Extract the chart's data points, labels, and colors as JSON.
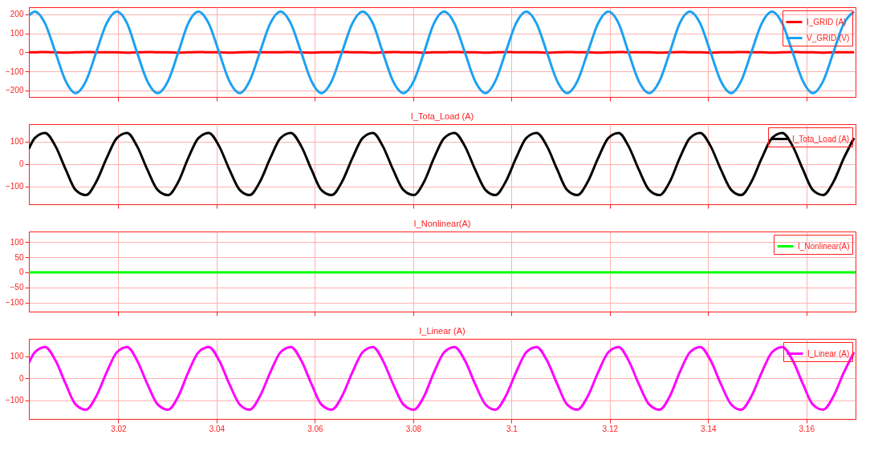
{
  "chart_data": [
    {
      "type": "line",
      "x": [
        3.0018,
        3.003,
        3.0051,
        3.0072,
        3.0093,
        3.0113,
        3.0134,
        3.0155,
        3.0176,
        3.0197,
        3.0218,
        3.0238,
        3.0259,
        3.028,
        3.0301,
        3.0322,
        3.0342,
        3.0363,
        3.0384,
        3.0405,
        3.0426,
        3.0447,
        3.0467,
        3.0488,
        3.0509,
        3.053,
        3.0551,
        3.0572,
        3.0593,
        3.0613,
        3.0634,
        3.0655,
        3.0676,
        3.0697,
        3.0718,
        3.0738,
        3.0759,
        3.078,
        3.0801,
        3.0822,
        3.0842,
        3.0863,
        3.0884,
        3.0905,
        3.0926,
        3.0947,
        3.0967,
        3.0988,
        3.1009,
        3.103,
        3.1051,
        3.1072,
        3.1093,
        3.1113,
        3.1134,
        3.1155,
        3.1176,
        3.1197,
        3.1218,
        3.1238,
        3.1259,
        3.128,
        3.1301,
        3.1322,
        3.1342,
        3.1363,
        3.1384,
        3.1405,
        3.1426,
        3.1447,
        3.1467,
        3.1488,
        3.1509,
        3.153,
        3.1551,
        3.1572,
        3.1593,
        3.1613,
        3.1634,
        3.1655,
        3.1676,
        3.1697
      ],
      "series": [
        {
          "name": "I_GRID (A)",
          "color": "#ff0000",
          "values": [
            0,
            0,
            2,
            0,
            -2,
            0,
            2,
            0,
            0,
            0,
            -2,
            0,
            2,
            0,
            0,
            -2,
            0,
            2,
            0,
            0,
            -2,
            0,
            2,
            0,
            0,
            0,
            2,
            0,
            -2,
            0,
            0,
            2,
            0,
            0,
            -2,
            0,
            2,
            0,
            0,
            -2,
            0,
            0,
            2,
            0,
            0,
            -2,
            0,
            2,
            0,
            0,
            0,
            -2,
            0,
            2,
            0,
            0,
            -2,
            0,
            2,
            0,
            0,
            0,
            -2,
            0,
            2,
            0,
            0,
            -2,
            0,
            0,
            2,
            0,
            0,
            -2,
            0,
            2,
            0,
            0,
            -2,
            0,
            0,
            0
          ]
        },
        {
          "name": "V_GRID (V)",
          "color": "#1ba1f2",
          "values": [
            193,
            215,
            152,
            0,
            -152,
            -215,
            -152,
            0,
            152,
            215,
            152,
            0,
            -152,
            -215,
            -152,
            0,
            152,
            215,
            152,
            0,
            -152,
            -215,
            -152,
            0,
            152,
            215,
            152,
            0,
            -152,
            -215,
            -152,
            0,
            152,
            215,
            152,
            0,
            -152,
            -215,
            -152,
            0,
            152,
            215,
            152,
            0,
            -152,
            -215,
            -152,
            0,
            152,
            215,
            152,
            0,
            -152,
            -215,
            -152,
            0,
            152,
            215,
            152,
            0,
            -152,
            -215,
            -152,
            0,
            152,
            215,
            152,
            0,
            -152,
            -215,
            -152,
            0,
            152,
            215,
            152,
            0,
            -152,
            -215,
            -152,
            0,
            152,
            215
          ]
        }
      ],
      "xlim": [
        3.0018,
        3.17
      ],
      "xticks": [
        3.02,
        3.04,
        3.06,
        3.08,
        3.1,
        3.12,
        3.14,
        3.16
      ],
      "ylim": [
        -235,
        238
      ],
      "yticks": [
        -200,
        -100,
        0,
        100,
        200
      ],
      "grid": true,
      "legend": "top right",
      "tick_labels": "y"
    },
    {
      "type": "line",
      "title": "I_Tota_Load (A)",
      "x": [
        3.0018,
        3.003,
        3.0051,
        3.0072,
        3.0093,
        3.0113,
        3.0134,
        3.0155,
        3.0176,
        3.0197,
        3.0218,
        3.0238,
        3.0259,
        3.028,
        3.0301,
        3.0322,
        3.0342,
        3.0363,
        3.0384,
        3.0405,
        3.0426,
        3.0447,
        3.0467,
        3.0488,
        3.0509,
        3.053,
        3.0551,
        3.0572,
        3.0593,
        3.0613,
        3.0634,
        3.0655,
        3.0676,
        3.0697,
        3.0718,
        3.0738,
        3.0759,
        3.078,
        3.0801,
        3.0822,
        3.0842,
        3.0863,
        3.0884,
        3.0905,
        3.0926,
        3.0947,
        3.0967,
        3.0988,
        3.1009,
        3.103,
        3.1051,
        3.1072,
        3.1093,
        3.1113,
        3.1134,
        3.1155,
        3.1176,
        3.1197,
        3.1218,
        3.1238,
        3.1259,
        3.128,
        3.1301,
        3.1322,
        3.1342,
        3.1363,
        3.1384,
        3.1405,
        3.1426,
        3.1447,
        3.1467,
        3.1488,
        3.1509,
        3.153,
        3.1551,
        3.1572,
        3.1593,
        3.1613,
        3.1634,
        3.1655,
        3.1676,
        3.1697
      ],
      "series": [
        {
          "name": "I_Tota_Load (A)",
          "color": "#000000",
          "values": [
            68,
            116,
            139,
            80,
            -25,
            -116,
            -139,
            -80,
            25,
            116,
            139,
            80,
            -25,
            -116,
            -139,
            -80,
            25,
            116,
            139,
            80,
            -25,
            -116,
            -139,
            -80,
            25,
            116,
            139,
            80,
            -25,
            -116,
            -139,
            -80,
            25,
            116,
            139,
            80,
            -25,
            -116,
            -139,
            -80,
            25,
            116,
            139,
            80,
            -25,
            -116,
            -139,
            -80,
            25,
            116,
            139,
            80,
            -25,
            -116,
            -139,
            -80,
            25,
            116,
            139,
            80,
            -25,
            -116,
            -139,
            -80,
            25,
            116,
            139,
            80,
            -25,
            -116,
            -139,
            -80,
            25,
            116,
            139,
            80,
            -25,
            -116,
            -139,
            -80,
            25,
            116
          ]
        }
      ],
      "xlim": [
        3.0018,
        3.17
      ],
      "xticks": [
        3.02,
        3.04,
        3.06,
        3.08,
        3.1,
        3.12,
        3.14,
        3.16
      ],
      "ylim": [
        -180,
        178
      ],
      "yticks": [
        -100,
        0,
        100
      ],
      "grid": true,
      "legend": "top right",
      "tick_labels": "y"
    },
    {
      "type": "line",
      "title": "I_Nonlinear(A)",
      "x": [
        3.0018,
        3.17
      ],
      "series": [
        {
          "name": "I_Nonlinear(A)",
          "color": "#00ff00",
          "values": [
            0,
            0
          ]
        }
      ],
      "xlim": [
        3.0018,
        3.17
      ],
      "xticks": [
        3.02,
        3.04,
        3.06,
        3.08,
        3.1,
        3.12,
        3.14,
        3.16
      ],
      "ylim": [
        -130,
        135
      ],
      "yticks": [
        -100,
        -50,
        0,
        50,
        100
      ],
      "grid": true,
      "legend": "top right",
      "tick_labels": "y"
    },
    {
      "type": "line",
      "title": "I_Linear (A)",
      "x": [
        3.0018,
        3.003,
        3.0051,
        3.0072,
        3.0093,
        3.0113,
        3.0134,
        3.0155,
        3.0176,
        3.0197,
        3.0218,
        3.0238,
        3.0259,
        3.028,
        3.0301,
        3.0322,
        3.0342,
        3.0363,
        3.0384,
        3.0405,
        3.0426,
        3.0447,
        3.0467,
        3.0488,
        3.0509,
        3.053,
        3.0551,
        3.0572,
        3.0593,
        3.0613,
        3.0634,
        3.0655,
        3.0676,
        3.0697,
        3.0718,
        3.0738,
        3.0759,
        3.078,
        3.0801,
        3.0822,
        3.0842,
        3.0863,
        3.0884,
        3.0905,
        3.0926,
        3.0947,
        3.0967,
        3.0988,
        3.1009,
        3.103,
        3.1051,
        3.1072,
        3.1093,
        3.1113,
        3.1134,
        3.1155,
        3.1176,
        3.1197,
        3.1218,
        3.1238,
        3.1259,
        3.128,
        3.1301,
        3.1322,
        3.1342,
        3.1363,
        3.1384,
        3.1405,
        3.1426,
        3.1447,
        3.1467,
        3.1488,
        3.1509,
        3.153,
        3.1551,
        3.1572,
        3.1593,
        3.1613,
        3.1634,
        3.1655,
        3.1676,
        3.1697
      ],
      "series": [
        {
          "name": "I_Linear (A)",
          "color": "#ff00ff",
          "values": [
            70,
            119,
            143,
            82,
            -26,
            -119,
            -143,
            -82,
            26,
            119,
            143,
            82,
            -26,
            -119,
            -143,
            -82,
            26,
            119,
            143,
            82,
            -26,
            -119,
            -143,
            -82,
            26,
            119,
            143,
            82,
            -26,
            -119,
            -143,
            -82,
            26,
            119,
            143,
            82,
            -26,
            -119,
            -143,
            -82,
            26,
            119,
            143,
            82,
            -26,
            -119,
            -143,
            -82,
            26,
            119,
            143,
            82,
            -26,
            -119,
            -143,
            -82,
            26,
            119,
            143,
            82,
            -26,
            -119,
            -143,
            -82,
            26,
            119,
            143,
            82,
            -26,
            -119,
            -143,
            -82,
            26,
            119,
            143,
            82,
            -26,
            -119,
            -143,
            -82,
            26,
            119
          ]
        }
      ],
      "xlim": [
        3.0018,
        3.17
      ],
      "xticks": [
        3.02,
        3.04,
        3.06,
        3.08,
        3.1,
        3.12,
        3.14,
        3.16
      ],
      "ylim": [
        -185,
        180
      ],
      "yticks": [
        -100,
        0,
        100
      ],
      "grid": true,
      "legend": "top right"
    }
  ]
}
